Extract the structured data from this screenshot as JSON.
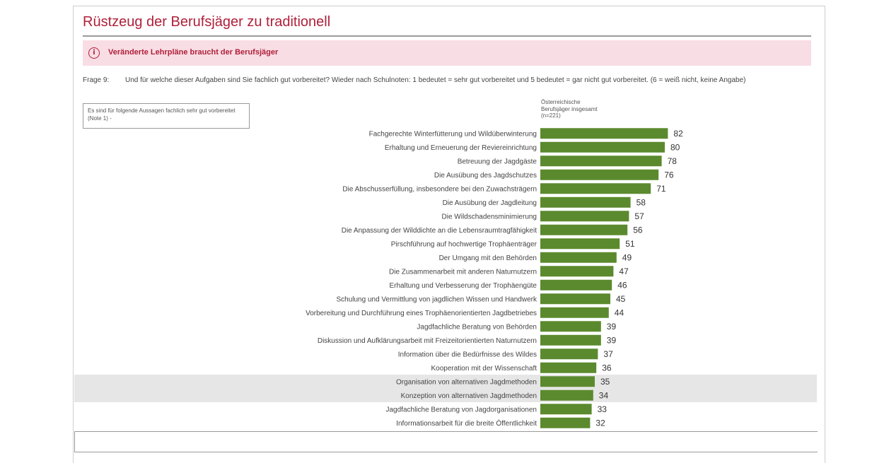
{
  "title": "Rüstzeug der Berufsjäger zu traditionell",
  "banner": {
    "icon": "info-circle-icon",
    "text": "Veränderte Lehrpläne braucht der Berufsjäger"
  },
  "question": {
    "prefix": "Frage 9:",
    "text": "Und für welche dieser Aufgaben sind Sie fachlich gut vorbereitet? Wieder nach Schulnoten: 1 bedeutet = sehr gut vorbereitet und 5 bedeutet = gar nicht gut vorbereitet. (6 = weiß nicht, keine Angabe)"
  },
  "note": "Es sind für folgende Aussagen fachlich sehr gut vorbereitet (Note 1) -",
  "column_header": {
    "line1": "Österreichische",
    "line2": "Berufsjäger insgesamt",
    "line3": "(n=221)"
  },
  "colors": {
    "bar": "#5b8a2e",
    "title": "#b0203a",
    "banner_bg": "#f9dde4",
    "highlight_band": "#e6e6e6"
  },
  "chart_data": {
    "type": "bar",
    "orientation": "horizontal",
    "categories": [
      "Fachgerechte Winterfütterung und Wildüberwinterung",
      "Erhaltung und Erneuerung der Reviereinrichtung",
      "Betreuung der Jagdgäste",
      "Die Ausübung des Jagdschutzes",
      "Die Abschusserfüllung, insbesondere bei den Zuwachsträgern",
      "Die Ausübung der Jagdleitung",
      "Die Wildschadensminimierung",
      "Die Anpassung der Wilddichte an die Lebensraumtragfähigkeit",
      "Pirschführung auf hochwertige Trophäenträger",
      "Der Umgang mit den Behörden",
      "Die Zusammenarbeit mit anderen Naturnutzern",
      "Erhaltung und Verbesserung der Trophäengüte",
      "Schulung und Vermittlung von jagdlichen Wissen und Handwerk",
      "Vorbereitung und Durchführung eines Trophäenorientierten Jagdbetriebes",
      "Jagdfachliche Beratung von Behörden",
      "Diskussion und Aufklärungsarbeit mit Freizeitorientierten Naturnutzern",
      "Information über die Bedürfnisse des Wildes",
      "Kooperation mit der Wissenschaft",
      "Organisation von alternativen Jagdmethoden",
      "Konzeption von alternativen Jagdmethoden",
      "Jagdfachliche Beratung von Jagdorganisationen",
      "Informationsarbeit für die breite Öffentlichkeit"
    ],
    "values": [
      82,
      80,
      78,
      76,
      71,
      58,
      57,
      56,
      51,
      49,
      47,
      46,
      45,
      44,
      39,
      39,
      37,
      36,
      35,
      34,
      33,
      32
    ],
    "highlighted": [
      "Organisation von alternativen Jagdmethoden",
      "Konzeption von alternativen Jagdmethoden"
    ]
  }
}
